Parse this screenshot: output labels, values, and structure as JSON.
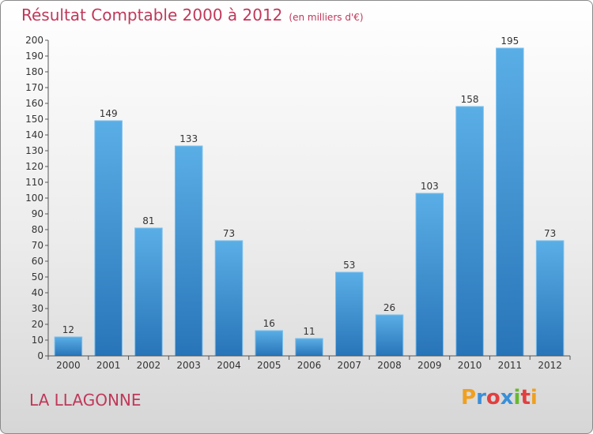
{
  "title": "Résultat Comptable 2000 à 2012",
  "unit": "(en milliers d'€)",
  "place": "LA LLAGONNE",
  "logo": {
    "letters": [
      "P",
      "r",
      "o",
      "x",
      "i",
      "t",
      "i"
    ],
    "colors": [
      "#f0a020",
      "#3a8fd8",
      "#e04040",
      "#3a8fd8",
      "#68b830",
      "#e04040",
      "#f0a020"
    ]
  },
  "chart_data": {
    "type": "bar",
    "title": "Résultat Comptable 2000 à 2012",
    "subtitle": "(en milliers d'€)",
    "categories": [
      "2000",
      "2001",
      "2002",
      "2003",
      "2004",
      "2005",
      "2006",
      "2007",
      "2008",
      "2009",
      "2010",
      "2011",
      "2012"
    ],
    "values": [
      12,
      149,
      81,
      133,
      73,
      16,
      11,
      53,
      26,
      103,
      158,
      195,
      73
    ],
    "ylim": [
      0,
      200
    ],
    "yticks": [
      0,
      10,
      20,
      30,
      40,
      50,
      60,
      70,
      80,
      90,
      100,
      110,
      120,
      130,
      140,
      150,
      160,
      170,
      180,
      190,
      200
    ],
    "grid": false,
    "colors": {
      "bar": "#4a9ad8",
      "bar_dark": "#2a78bf",
      "axis": "#555555",
      "text": "#333333"
    }
  }
}
